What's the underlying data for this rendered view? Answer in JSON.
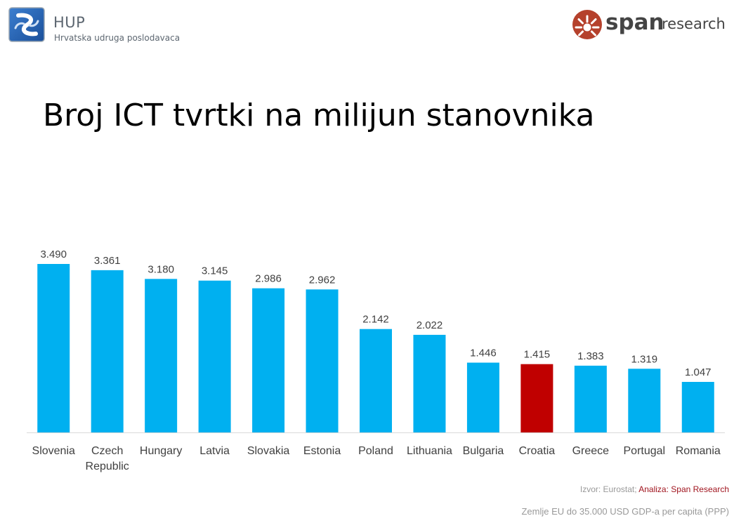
{
  "header": {
    "hup_name": "HUP",
    "hup_subtitle": "Hrvatska udruga poslodavaca",
    "span_word": "span",
    "span_research": "research"
  },
  "title": "Broj ICT tvrtki na milijun stanovnika",
  "chart_data": {
    "type": "bar",
    "title": "Broj ICT tvrtki na milijun stanovnika",
    "xlabel": "",
    "ylabel": "",
    "categories": [
      "Slovenia",
      "Czech Republic",
      "Hungary",
      "Latvia",
      "Slovakia",
      "Estonia",
      "Poland",
      "Lithuania",
      "Bulgaria",
      "Croatia",
      "Greece",
      "Portugal",
      "Romania"
    ],
    "category_lines": [
      [
        "Slovenia"
      ],
      [
        "Czech",
        "Republic"
      ],
      [
        "Hungary"
      ],
      [
        "Latvia"
      ],
      [
        "Slovakia"
      ],
      [
        "Estonia"
      ],
      [
        "Poland"
      ],
      [
        "Lithuania"
      ],
      [
        "Bulgaria"
      ],
      [
        "Croatia"
      ],
      [
        "Greece"
      ],
      [
        "Portugal"
      ],
      [
        "Romania"
      ]
    ],
    "values": [
      3.49,
      3.361,
      3.18,
      3.145,
      2.986,
      2.962,
      2.142,
      2.022,
      1.446,
      1.415,
      1.383,
      1.319,
      1.047
    ],
    "value_labels": [
      "3.490",
      "3.361",
      "3.180",
      "3.145",
      "2.986",
      "2.962",
      "2.142",
      "2.022",
      "1.446",
      "1.415",
      "1.383",
      "1.319",
      "1.047"
    ],
    "ylim": [
      0,
      3.49
    ],
    "grid": false,
    "legend": "none",
    "bar_color": "#00b0f0",
    "highlight_category": "Croatia",
    "highlight_color": "#c00000"
  },
  "source": {
    "prefix": "Izvor: Eurostat; ",
    "analysis": "Analiza: Span Research"
  },
  "footnote": "Zemlje EU do 35.000 USD GDP-a per capita (PPP)",
  "colors": {
    "hup_blue": "#1f5fa8",
    "span_red": "#b5412c"
  }
}
